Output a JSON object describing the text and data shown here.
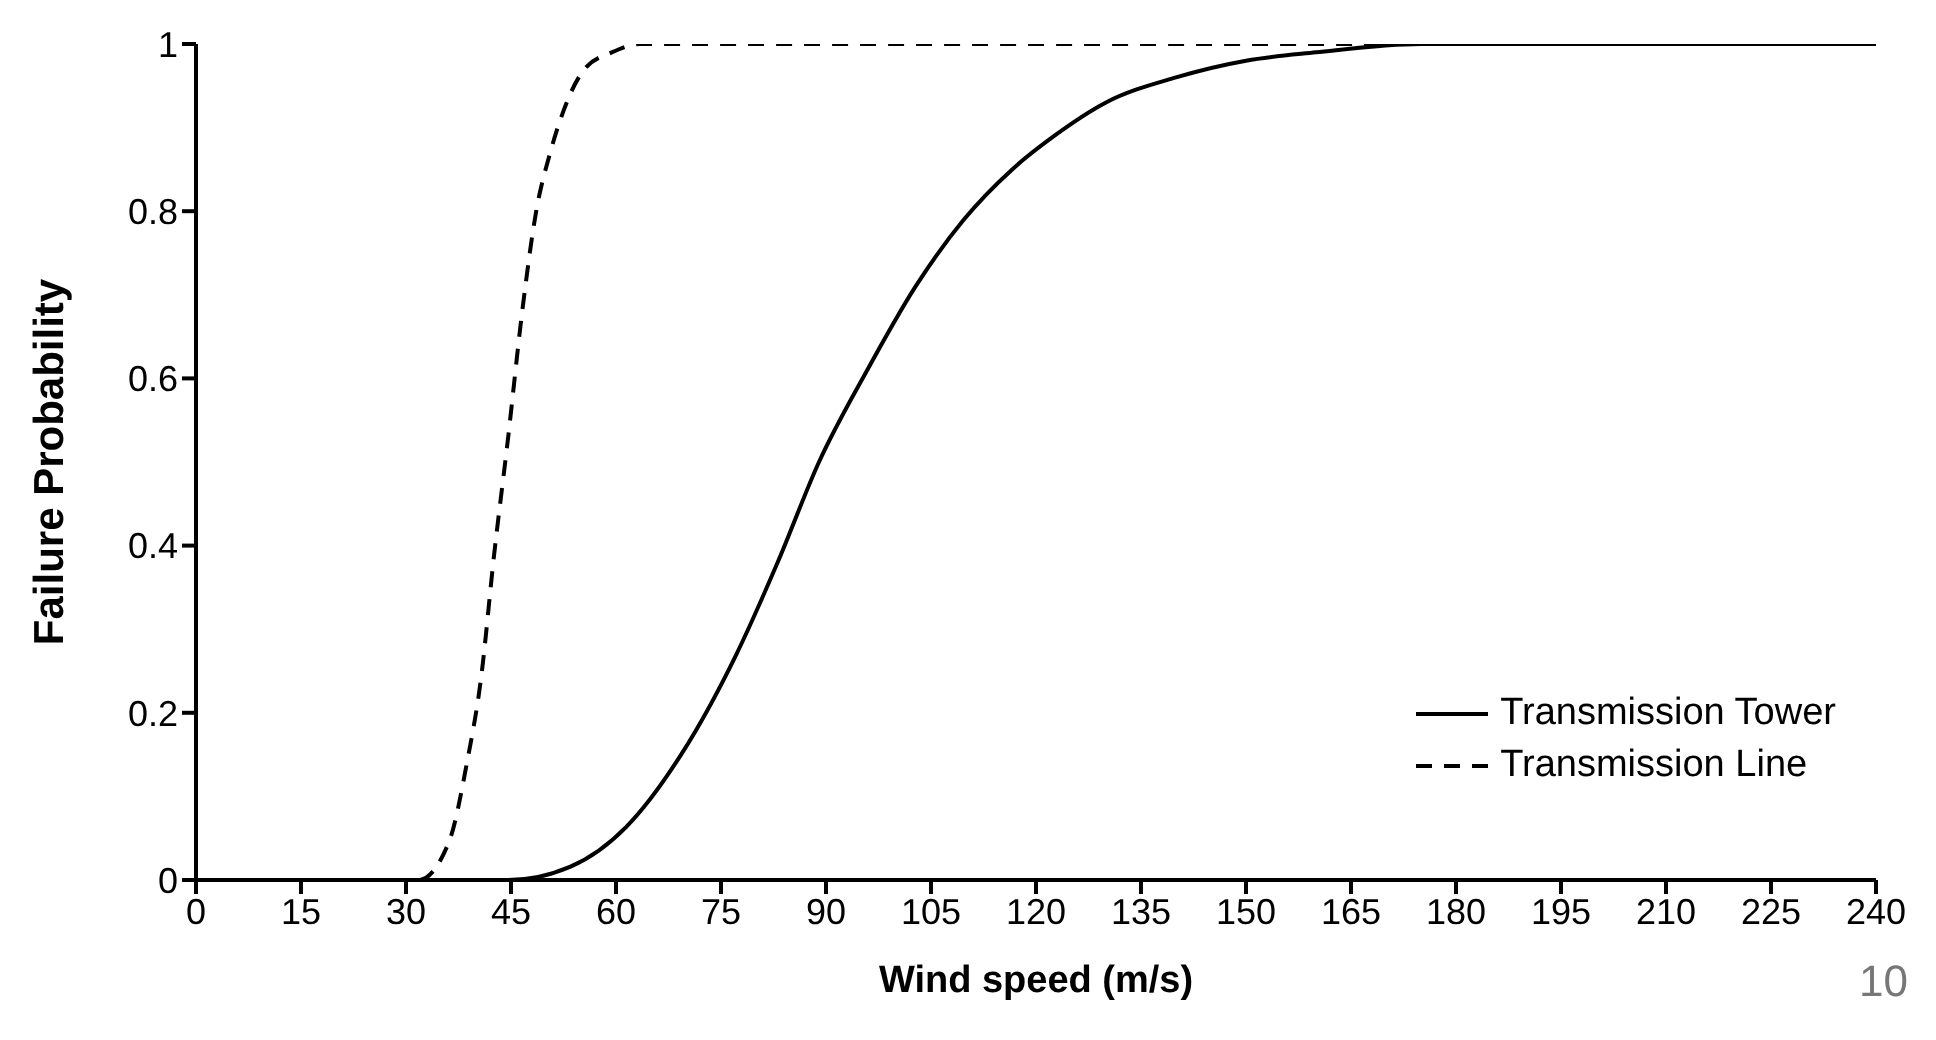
{
  "chart_data": {
    "type": "line",
    "xlabel": "Wind speed (m/s)",
    "ylabel": "Failure Probability",
    "xlim": [
      0,
      240
    ],
    "xticks": [
      0,
      15,
      30,
      45,
      60,
      75,
      90,
      105,
      120,
      135,
      150,
      165,
      180,
      195,
      210,
      225,
      240
    ],
    "ylim": [
      0,
      1
    ],
    "yticks": [
      0,
      0.2,
      0.4,
      0.6,
      0.8,
      1
    ],
    "grid": false,
    "legend": "bottom right",
    "marker": "none",
    "annotations": [
      "10"
    ],
    "series": [
      {
        "name": "Transmission Tower",
        "color": "#000000",
        "line_style": "solid",
        "x": [
          0,
          44.6,
          53.5,
          61.4,
          69.3,
          77.2,
          83.1,
          89,
          95.9,
          102.8,
          109.7,
          116.6,
          122.6,
          130,
          140,
          150,
          160,
          175,
          240
        ],
        "values": [
          0,
          0,
          0.016,
          0.063,
          0.15,
          0.27,
          0.38,
          0.5,
          0.61,
          0.71,
          0.79,
          0.85,
          0.89,
          0.93,
          0.96,
          0.98,
          0.99,
          1,
          1
        ]
      },
      {
        "name": "Transmission Line",
        "color": "#000000",
        "line_style": "dashed",
        "x": [
          0,
          31.8,
          36.2,
          38.7,
          40.7,
          42.6,
          44.6,
          46.6,
          48.6,
          50.6,
          52.5,
          55.5,
          59.4,
          63.4,
          240
        ],
        "values": [
          0,
          0,
          0.047,
          0.14,
          0.24,
          0.39,
          0.53,
          0.68,
          0.8,
          0.87,
          0.92,
          0.97,
          0.99,
          1,
          1
        ]
      }
    ]
  }
}
